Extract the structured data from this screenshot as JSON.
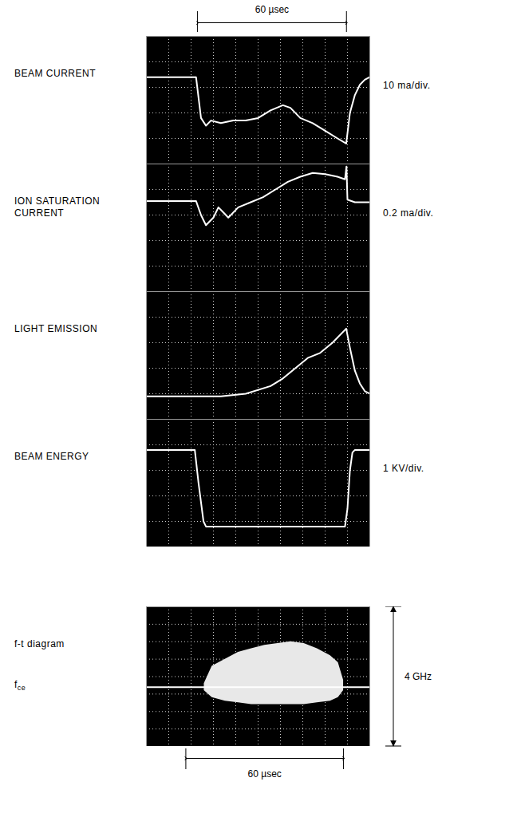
{
  "chart_data": [
    {
      "type": "line",
      "title": "BEAM CURRENT",
      "ylabel": "10 ma/div.",
      "x": [
        0,
        20,
        21,
        22,
        24,
        26,
        30,
        35,
        40,
        45,
        50,
        55,
        58,
        62,
        67,
        72,
        77,
        80.5,
        81,
        82,
        84,
        86,
        88,
        90
      ],
      "values": [
        34,
        34,
        26,
        18,
        15,
        17,
        16,
        17,
        17,
        18,
        21,
        23,
        22,
        18,
        16,
        13,
        10,
        8,
        12,
        20,
        27,
        31,
        33,
        34
      ],
      "color": "#ffffff",
      "xlim": [
        0,
        90
      ],
      "xticks": [
        0,
        9,
        18,
        27,
        36,
        45,
        54,
        63,
        72,
        81,
        90
      ],
      "ylim": [
        0,
        50
      ],
      "yticks": [
        0,
        10,
        20,
        30,
        40,
        50
      ],
      "grid": true,
      "tick_labels": false,
      "annotations": [
        {
          "text": "60 µsec",
          "x": [
            20.6,
            80.6
          ]
        }
      ]
    },
    {
      "type": "line",
      "title": "ION SATURATION CURRENT",
      "ylabel": "0.2 ma/div.",
      "x": [
        0,
        20,
        22,
        24,
        27,
        29,
        31,
        33,
        37,
        42,
        47,
        52,
        57,
        62,
        67,
        72,
        77,
        80,
        80.6,
        81,
        84,
        90
      ],
      "values": [
        0.71,
        0.71,
        0.6,
        0.52,
        0.58,
        0.66,
        0.62,
        0.58,
        0.66,
        0.7,
        0.74,
        0.8,
        0.86,
        0.9,
        0.93,
        0.92,
        0.9,
        0.88,
        0.98,
        0.72,
        0.7,
        0.7
      ],
      "color": "#ffffff",
      "xlim": [
        0,
        90
      ],
      "xticks": [
        0,
        9,
        18,
        27,
        36,
        45,
        54,
        63,
        72,
        81,
        90
      ],
      "ylim": [
        0,
        1
      ],
      "yticks": [
        0,
        0.2,
        0.4,
        0.6,
        0.8,
        1
      ],
      "grid": true,
      "tick_labels": false
    },
    {
      "type": "line",
      "title": "LIGHT EMISSION",
      "x": [
        0,
        30,
        40,
        50,
        55,
        60,
        65,
        70,
        75,
        80.5,
        82,
        84,
        86,
        88,
        90
      ],
      "values": [
        0.9,
        0.9,
        1.0,
        1.3,
        1.6,
        2.0,
        2.4,
        2.6,
        3.0,
        3.55,
        2.8,
        1.9,
        1.4,
        1.1,
        1.0
      ],
      "color": "#ffffff",
      "xlim": [
        0,
        90
      ],
      "xticks": [
        0,
        9,
        18,
        27,
        36,
        45,
        54,
        63,
        72,
        81,
        90
      ],
      "ylim": [
        0,
        5
      ],
      "yticks": [
        0,
        1,
        2,
        3,
        4,
        5
      ],
      "grid": true,
      "tick_labels": false
    },
    {
      "type": "line",
      "title": "BEAM ENERGY",
      "ylabel": "1 KV/div.",
      "x": [
        0,
        19.5,
        21,
        23,
        24,
        80,
        81,
        82,
        83,
        84,
        90
      ],
      "values": [
        3.8,
        3.8,
        2.5,
        1.0,
        0.8,
        0.8,
        1.5,
        3.0,
        3.7,
        3.8,
        3.8
      ],
      "color": "#ffffff",
      "xlim": [
        0,
        90
      ],
      "xticks": [
        0,
        9,
        18,
        27,
        36,
        45,
        54,
        63,
        72,
        81,
        90
      ],
      "ylim": [
        0,
        5
      ],
      "yticks": [
        0,
        1,
        2,
        3,
        4,
        5
      ],
      "grid": true,
      "tick_labels": false
    },
    {
      "type": "area",
      "title": "f-t diagram",
      "x": [
        22,
        25,
        30,
        35,
        40,
        45,
        50,
        55,
        60,
        65,
        70,
        73,
        75
      ],
      "low": [
        1.6,
        1.4,
        1.3,
        1.25,
        1.2,
        1.2,
        1.2,
        1.2,
        1.2,
        1.25,
        1.3,
        1.4,
        1.6
      ],
      "high": [
        1.8,
        2.3,
        2.5,
        2.7,
        2.8,
        2.9,
        2.95,
        3.0,
        2.95,
        2.8,
        2.6,
        2.4,
        1.9
      ],
      "color": "#e8e8e8",
      "xlim": [
        0,
        85
      ],
      "xticks": [
        0,
        8.5,
        17,
        25.5,
        34,
        42.5,
        51,
        59.5,
        68,
        76.5,
        85
      ],
      "ylim": [
        0,
        4
      ],
      "yticks": [
        0,
        0.5,
        1,
        1.5,
        2,
        2.5,
        3,
        3.5,
        4
      ],
      "grid": true,
      "tick_labels": false,
      "annotations": [
        {
          "text": "fce",
          "y": 1.7
        },
        {
          "text": "4 GHz",
          "y": [
            0,
            4
          ]
        },
        {
          "text": "60 µsec",
          "x": [
            15,
            75
          ]
        }
      ]
    }
  ]
}
